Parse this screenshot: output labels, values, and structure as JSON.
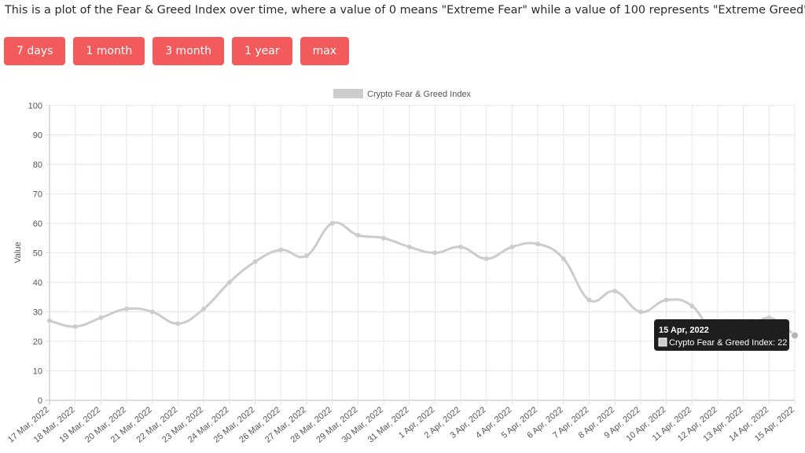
{
  "intro": "This is a plot of the Fear & Greed Index over time, where a value of 0 means \"Extreme Fear\" while a value of 100 represents \"Extreme Greed\".",
  "buttons": [
    "7 days",
    "1 month",
    "3 month",
    "1 year",
    "max"
  ],
  "colors": {
    "button": "#f25a5c",
    "line": "#cccccc",
    "grid": "#e6e6e6",
    "tooltip_bg": "#1e1e1e"
  },
  "tooltip": {
    "title": "15 Apr, 2022",
    "body": "Crypto Fear & Greed Index: 22"
  },
  "chart_data": {
    "type": "line",
    "x": [
      "17 Mar, 2022",
      "18 Mar, 2022",
      "19 Mar, 2022",
      "20 Mar, 2022",
      "21 Mar, 2022",
      "22 Mar, 2022",
      "23 Mar, 2022",
      "24 Mar, 2022",
      "25 Mar, 2022",
      "26 Mar, 2022",
      "27 Mar, 2022",
      "28 Mar, 2022",
      "29 Mar, 2022",
      "30 Mar, 2022",
      "31 Mar, 2022",
      "1 Apr, 2022",
      "2 Apr, 2022",
      "3 Apr, 2022",
      "4 Apr, 2022",
      "5 Apr, 2022",
      "6 Apr, 2022",
      "7 Apr, 2022",
      "8 Apr, 2022",
      "9 Apr, 2022",
      "10 Apr, 2022",
      "11 Apr, 2022",
      "12 Apr, 2022",
      "13 Apr, 2022",
      "14 Apr, 2022",
      "15 Apr, 2022"
    ],
    "series": [
      {
        "name": "Crypto Fear & Greed Index",
        "values": [
          27,
          25,
          28,
          31,
          30,
          26,
          31,
          40,
          47,
          51,
          49,
          60,
          56,
          55,
          52,
          50,
          52,
          48,
          52,
          53,
          48,
          34,
          37,
          30,
          34,
          32,
          21,
          23,
          28,
          22
        ]
      }
    ],
    "ylabel": "Value",
    "ylim": [
      0,
      100
    ],
    "yticks": [
      0,
      10,
      20,
      30,
      40,
      50,
      60,
      70,
      80,
      90,
      100
    ],
    "grid": true,
    "legend": "top-center"
  }
}
